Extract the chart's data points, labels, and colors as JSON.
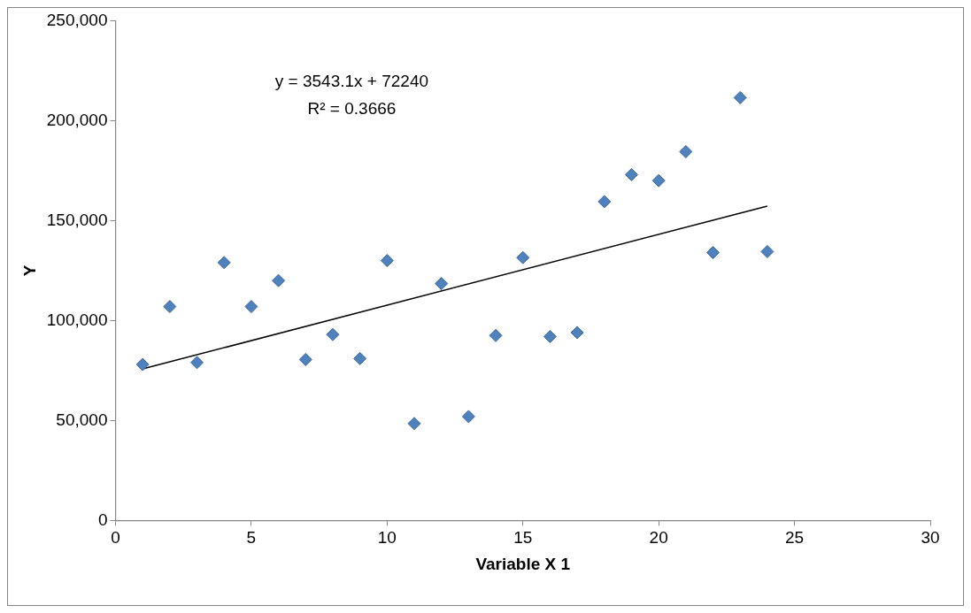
{
  "chart_data": {
    "type": "scatter",
    "xlabel": "Variable X 1",
    "ylabel": "Y",
    "x": [
      1,
      2,
      3,
      4,
      5,
      6,
      7,
      8,
      9,
      10,
      11,
      12,
      13,
      14,
      15,
      16,
      17,
      18,
      19,
      20,
      21,
      22,
      23,
      24
    ],
    "series": [
      {
        "color": "#4f81bd",
        "marker": "diamond",
        "values": [
          78000,
          107000,
          79000,
          129000,
          107000,
          120000,
          80500,
          93000,
          81000,
          130000,
          48500,
          118500,
          52000,
          92500,
          131500,
          92000,
          94000,
          159500,
          173000,
          170000,
          184500,
          134000,
          211500,
          134500
        ]
      },
      {
        "type": "line",
        "color": "#000000",
        "marker": "none",
        "line_style": "solid",
        "x": [
          1,
          24
        ],
        "values": [
          75800,
          157300
        ]
      }
    ],
    "xlim": [
      0,
      30
    ],
    "xticks": [
      0,
      5,
      10,
      15,
      20,
      25,
      30
    ],
    "ylim": [
      0,
      250000
    ],
    "yticks": [
      0,
      {
        "value": 50000,
        "label": "50,000"
      },
      {
        "value": 100000,
        "label": "100,000"
      },
      {
        "value": 150000,
        "label": "150,000"
      },
      {
        "value": 200000,
        "label": "200,000"
      },
      {
        "value": 250000,
        "label": "250,000"
      }
    ],
    "annotations": [
      "y = 3543.1x + 72240",
      "R² = 0.3666"
    ],
    "grid": false,
    "legend": false
  }
}
